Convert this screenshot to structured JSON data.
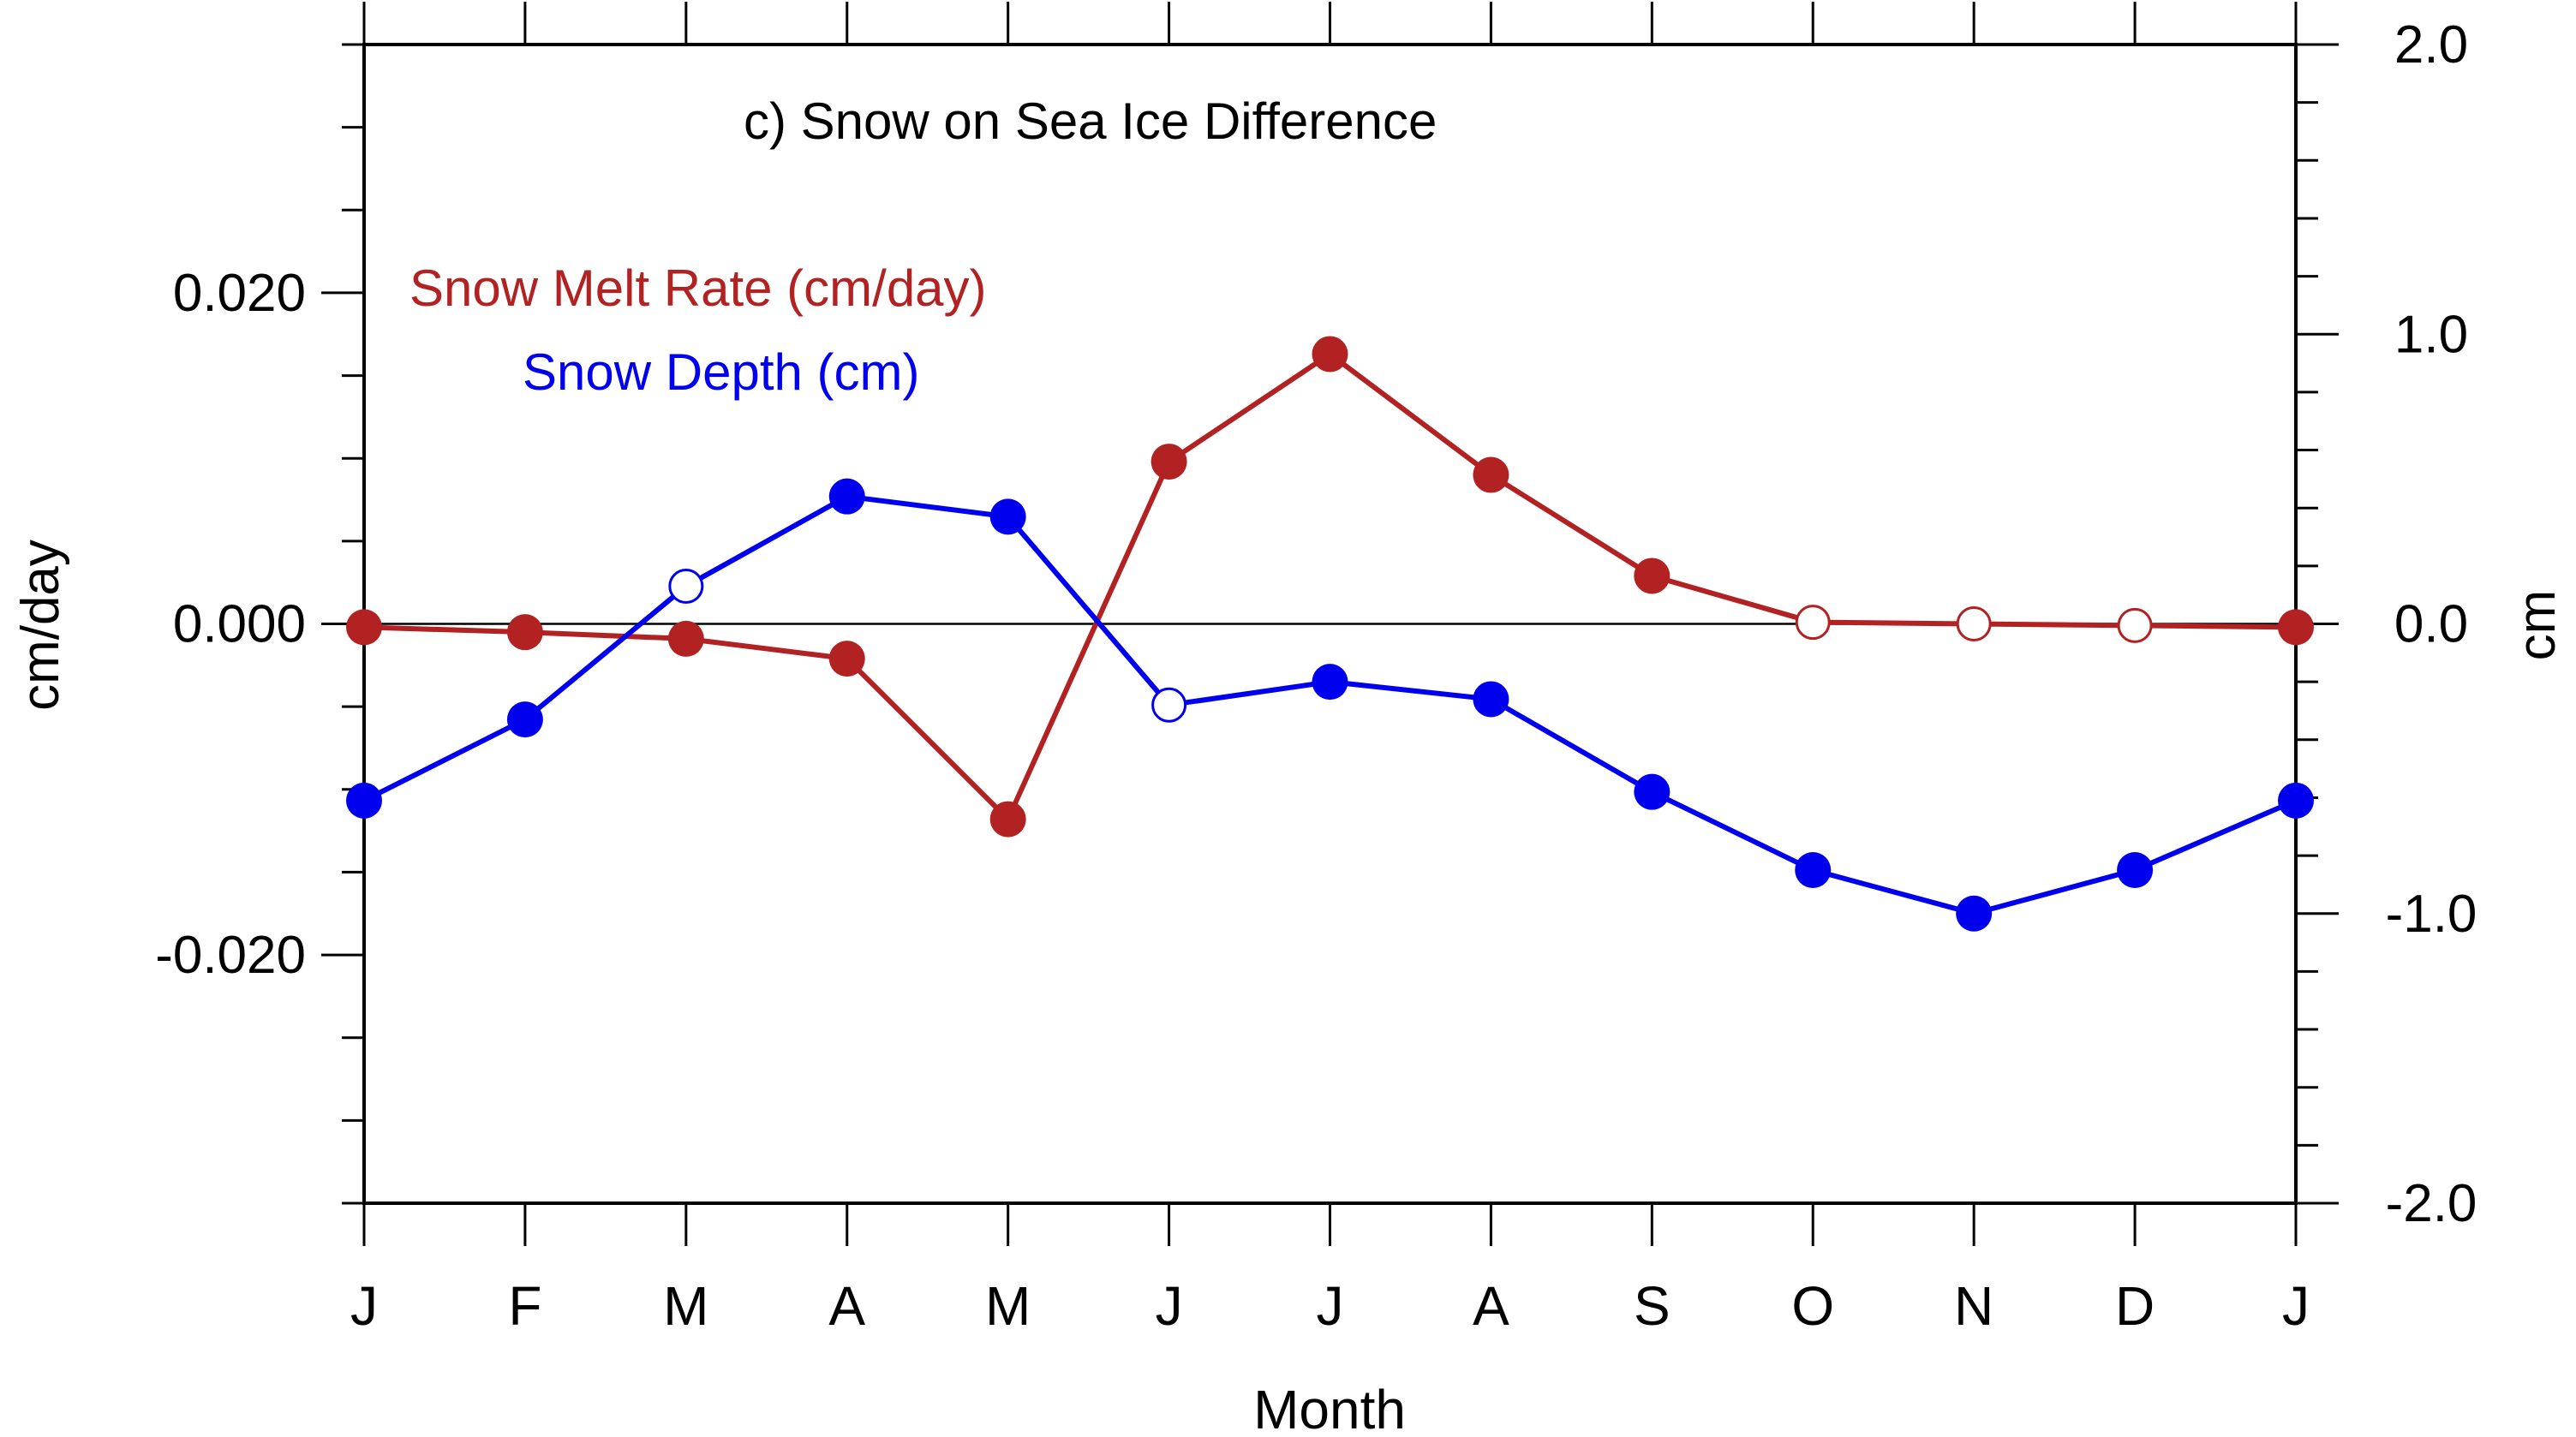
{
  "chart_data": {
    "type": "line",
    "title": "c) Snow on Sea Ice Difference",
    "xlabel": "Month",
    "ylabel_left": "cm/day",
    "ylabel_right": "cm",
    "categories": [
      "J",
      "F",
      "M",
      "A",
      "M",
      "J",
      "J",
      "A",
      "S",
      "O",
      "N",
      "D",
      "J"
    ],
    "left_axis": {
      "ylim": [
        -0.035,
        0.035
      ],
      "ticks": [
        0.02,
        0.0,
        -0.02
      ],
      "tick_labels": [
        "0.020",
        "0.000",
        "-0.020"
      ],
      "minor_step": 0.005
    },
    "right_axis": {
      "ylim": [
        -2.0,
        2.0
      ],
      "ticks": [
        2.0,
        1.0,
        0.0,
        -1.0,
        -2.0
      ],
      "tick_labels": [
        "2.0",
        "1.0",
        "0.0",
        "-1.0",
        "-2.0"
      ],
      "minor_step": 0.2
    },
    "zero_line": true,
    "legend": "upper-left, inside, colored text labels",
    "series": [
      {
        "name": "Snow Melt Rate (cm/day)",
        "axis": "left",
        "color": "#b22222",
        "values": [
          -0.0002,
          -0.0005,
          -0.0009,
          -0.0021,
          -0.0118,
          0.0098,
          0.0163,
          0.009,
          0.0029,
          0.0001,
          0.0,
          -0.0001,
          -0.0002
        ],
        "filled": [
          true,
          true,
          true,
          true,
          true,
          true,
          true,
          true,
          true,
          false,
          false,
          false,
          true
        ]
      },
      {
        "name": "Snow Depth (cm)",
        "axis": "right",
        "color": "#0000ee",
        "values": [
          -0.61,
          -0.33,
          0.13,
          0.44,
          0.37,
          -0.28,
          -0.2,
          -0.26,
          -0.58,
          -0.85,
          -1.0,
          -0.85,
          -0.61
        ],
        "filled": [
          true,
          true,
          false,
          true,
          true,
          false,
          true,
          true,
          true,
          true,
          true,
          true,
          true
        ]
      }
    ]
  }
}
